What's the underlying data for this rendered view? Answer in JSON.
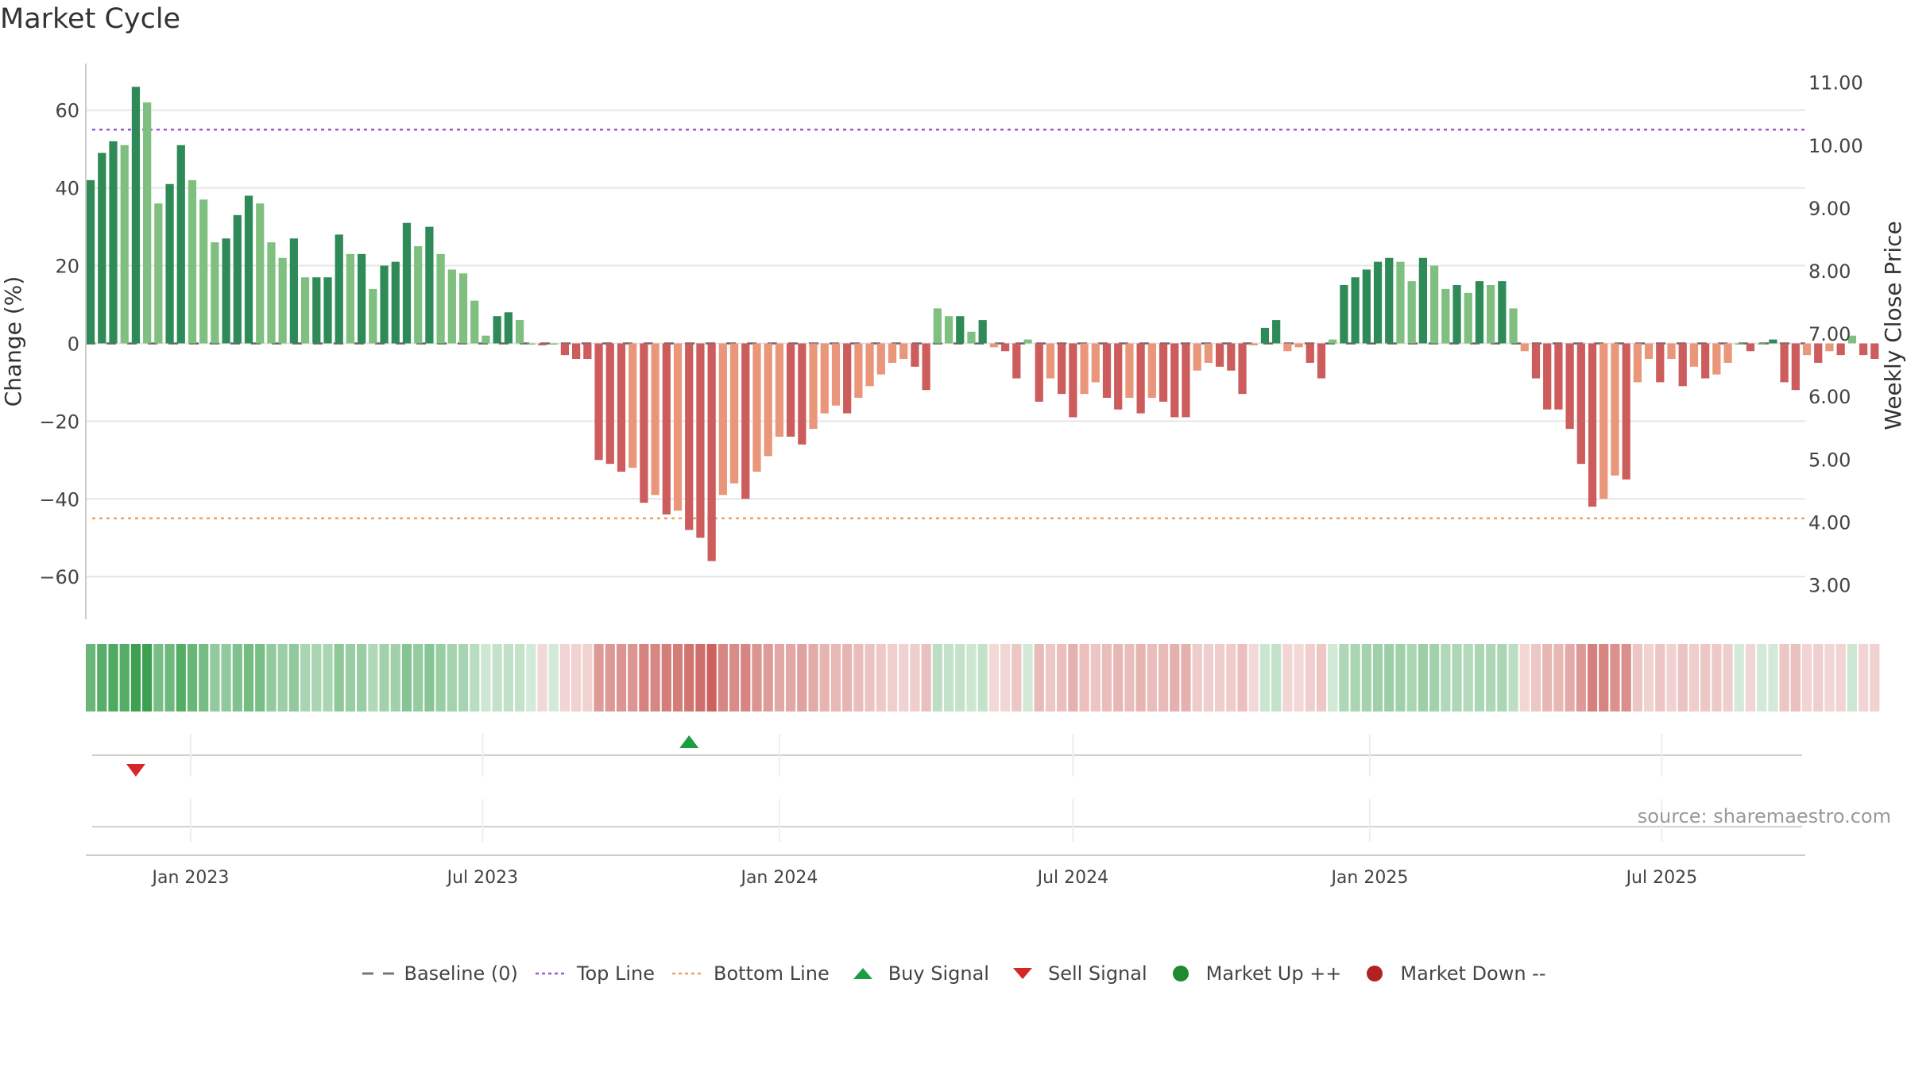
{
  "title": "Market Cycle",
  "source": "source: sharemaestro.com",
  "legend": [
    {
      "label": "Baseline (0)",
      "icon": "baseline-dash",
      "color": "#777777"
    },
    {
      "label": "Top Line",
      "icon": "dotted-line",
      "color": "#9b59d0"
    },
    {
      "label": "Bottom Line",
      "icon": "dotted-line",
      "color": "#f0a060"
    },
    {
      "label": "Buy Signal",
      "icon": "triangle-up",
      "color": "#1a9e3f"
    },
    {
      "label": "Sell Signal",
      "icon": "triangle-down",
      "color": "#d62728"
    },
    {
      "label": "Market Up ++",
      "icon": "circle",
      "color": "#1f8a2e"
    },
    {
      "label": "Market Down --",
      "icon": "circle",
      "color": "#b22222"
    }
  ],
  "chart_data": {
    "type": "bar",
    "ylabel": "Change (%)",
    "y2label": "Weekly Close Price",
    "ylim": [
      -71,
      72
    ],
    "yticks": [
      60,
      40,
      20,
      0,
      -20,
      -40,
      -60
    ],
    "ytick_labels": [
      "60",
      "40",
      "20",
      "0",
      "−20",
      "−40",
      "−60"
    ],
    "y2lim": [
      2.45,
      11.3
    ],
    "y2ticks": [
      11.0,
      10.0,
      9.0,
      8.0,
      7.0,
      6.0,
      5.0,
      4.0,
      3.0
    ],
    "y2tick_labels": [
      "11.00",
      "10.00",
      "9.00",
      "8.00",
      "7.00",
      "6.00",
      "5.00",
      "4.00",
      "3.00"
    ],
    "top_line": 55,
    "bottom_line": -45,
    "x_start": "2022-10-31",
    "x_range": [
      "2022-10-28",
      "2025-09-28"
    ],
    "xticks": [
      "2023-01-01",
      "2023-07-01",
      "2024-01-01",
      "2024-07-01",
      "2025-01-01",
      "2025-07-01"
    ],
    "xtick_labels": [
      "Jan 2023",
      "Jul 2023",
      "Jan 2024",
      "Jul 2024",
      "Jan 2025",
      "Jul 2025"
    ],
    "values": [
      42,
      49,
      52,
      51,
      66,
      62,
      36,
      41,
      51,
      42,
      37,
      26,
      27,
      33,
      38,
      36,
      26,
      22,
      27,
      17,
      17,
      17,
      28,
      23,
      23,
      14,
      20,
      21,
      31,
      25,
      30,
      23,
      19,
      18,
      11,
      2,
      7,
      8,
      6,
      0,
      -0.5,
      0,
      -3,
      -4,
      -4,
      -30,
      -31,
      -33,
      -32,
      -41,
      -39,
      -44,
      -43,
      -48,
      -50,
      -56,
      -39,
      -36,
      -40,
      -33,
      -29,
      -24,
      -24,
      -26,
      -22,
      -18,
      -16,
      -18,
      -14,
      -11,
      -8,
      -5,
      -4,
      -6,
      -12,
      9,
      7,
      7,
      3,
      6,
      -1,
      -2,
      -9,
      1,
      -15,
      -9,
      -13,
      -19,
      -13,
      -10,
      -14,
      -17,
      -14,
      -18,
      -14,
      -15,
      -19,
      -19,
      -7,
      -5,
      -6,
      -7,
      -13,
      -0.5,
      4,
      6,
      -2,
      -1,
      -5,
      -9,
      1,
      15,
      17,
      19,
      21,
      22,
      21,
      16,
      22,
      20,
      14,
      15,
      13,
      16,
      15,
      16,
      9,
      -2,
      -9,
      -17,
      -17,
      -22,
      -31,
      -42,
      -40,
      -34,
      -35,
      -10,
      -4,
      -10,
      -4,
      -11,
      -6,
      -9,
      -8,
      -5,
      0,
      -2,
      0,
      1,
      -10,
      -12,
      -3,
      -5,
      -2,
      -3,
      2,
      -3,
      -4
    ],
    "signals": [
      {
        "type": "sell",
        "index": 4
      },
      {
        "type": "buy",
        "index": 53
      }
    ]
  }
}
